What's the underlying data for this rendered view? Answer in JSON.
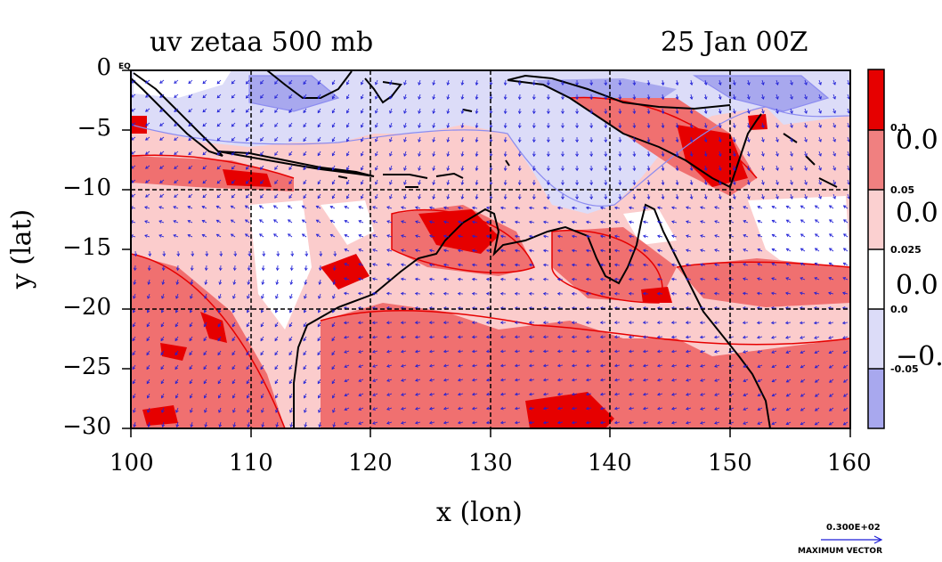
{
  "title_left": "uv zetaa 500 mb",
  "title_right": "25 Jan 00Z",
  "xlabel": "x (lon)",
  "ylabel": "y (lat)",
  "x_ticks": [
    "100",
    "110",
    "120",
    "130",
    "140",
    "150",
    "160"
  ],
  "y_ticks": [
    "0",
    "−5",
    "−10",
    "−15",
    "−20",
    "−25",
    "−30"
  ],
  "eq_label": "EQ",
  "colorbar": {
    "labels": [
      "0.1",
      "0.05",
      "0.025",
      "0.0",
      "-0.05"
    ],
    "big_labels": [
      "0.0",
      "0.0",
      "0.0",
      "−0."
    ],
    "colors": [
      "#e60000",
      "#f08080",
      "#fbd0d0",
      "#ffffff",
      "#dcdcf8",
      "#a8a8ee"
    ]
  },
  "vector_key": {
    "value": "0.300E+02",
    "label": "MAXIMUM VECTOR"
  },
  "colors": {
    "strong_red": "#e60000",
    "medium_red": "#f07070",
    "light_red": "#fbcccc",
    "light_blue": "#dcdcf8",
    "blue": "#a8a8ee",
    "vector": "#1f1fd6",
    "coast": "#000000"
  },
  "chart_data": {
    "type": "heatmap",
    "title": "uv zetaa 500 mb",
    "subtitle": "25 Jan 00Z",
    "xlabel": "x (lon)",
    "ylabel": "y (lat)",
    "xlim": [
      100,
      160
    ],
    "ylim": [
      -30,
      0
    ],
    "x_ticks": [
      100,
      110,
      120,
      130,
      140,
      150,
      160
    ],
    "y_ticks": [
      0,
      -5,
      -10,
      -15,
      -20,
      -25,
      -30
    ],
    "grid": true,
    "contour_levels": [
      -0.05,
      0.0,
      0.025,
      0.05,
      0.1
    ],
    "max_vector": "0.300E+02"
  }
}
